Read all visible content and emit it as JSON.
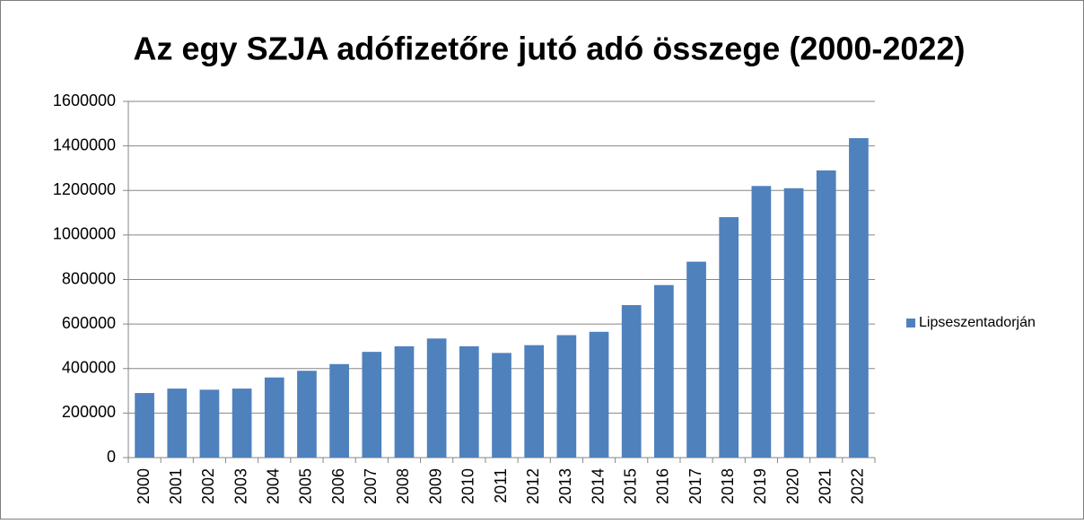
{
  "chart_data": {
    "type": "bar",
    "title": "Az egy SZJA adófizetőre jutó adó összege (2000-2022)",
    "categories": [
      "2000",
      "2001",
      "2002",
      "2003",
      "2004",
      "2005",
      "2006",
      "2007",
      "2008",
      "2009",
      "2010",
      "2011",
      "2012",
      "2013",
      "2014",
      "2015",
      "2016",
      "2017",
      "2018",
      "2019",
      "2020",
      "2021",
      "2022"
    ],
    "series": [
      {
        "name": "Lipseszentadorján",
        "color": "#4f81bd",
        "values": [
          290000,
          310000,
          305000,
          310000,
          360000,
          390000,
          420000,
          475000,
          500000,
          535000,
          500000,
          470000,
          505000,
          550000,
          565000,
          685000,
          775000,
          880000,
          1080000,
          1220000,
          1210000,
          1290000,
          1435000
        ]
      }
    ],
    "ylim": [
      0,
      1600000
    ],
    "yticks": [
      0,
      200000,
      400000,
      600000,
      800000,
      1000000,
      1200000,
      1400000,
      1600000
    ],
    "grid": true,
    "legend": "right"
  }
}
